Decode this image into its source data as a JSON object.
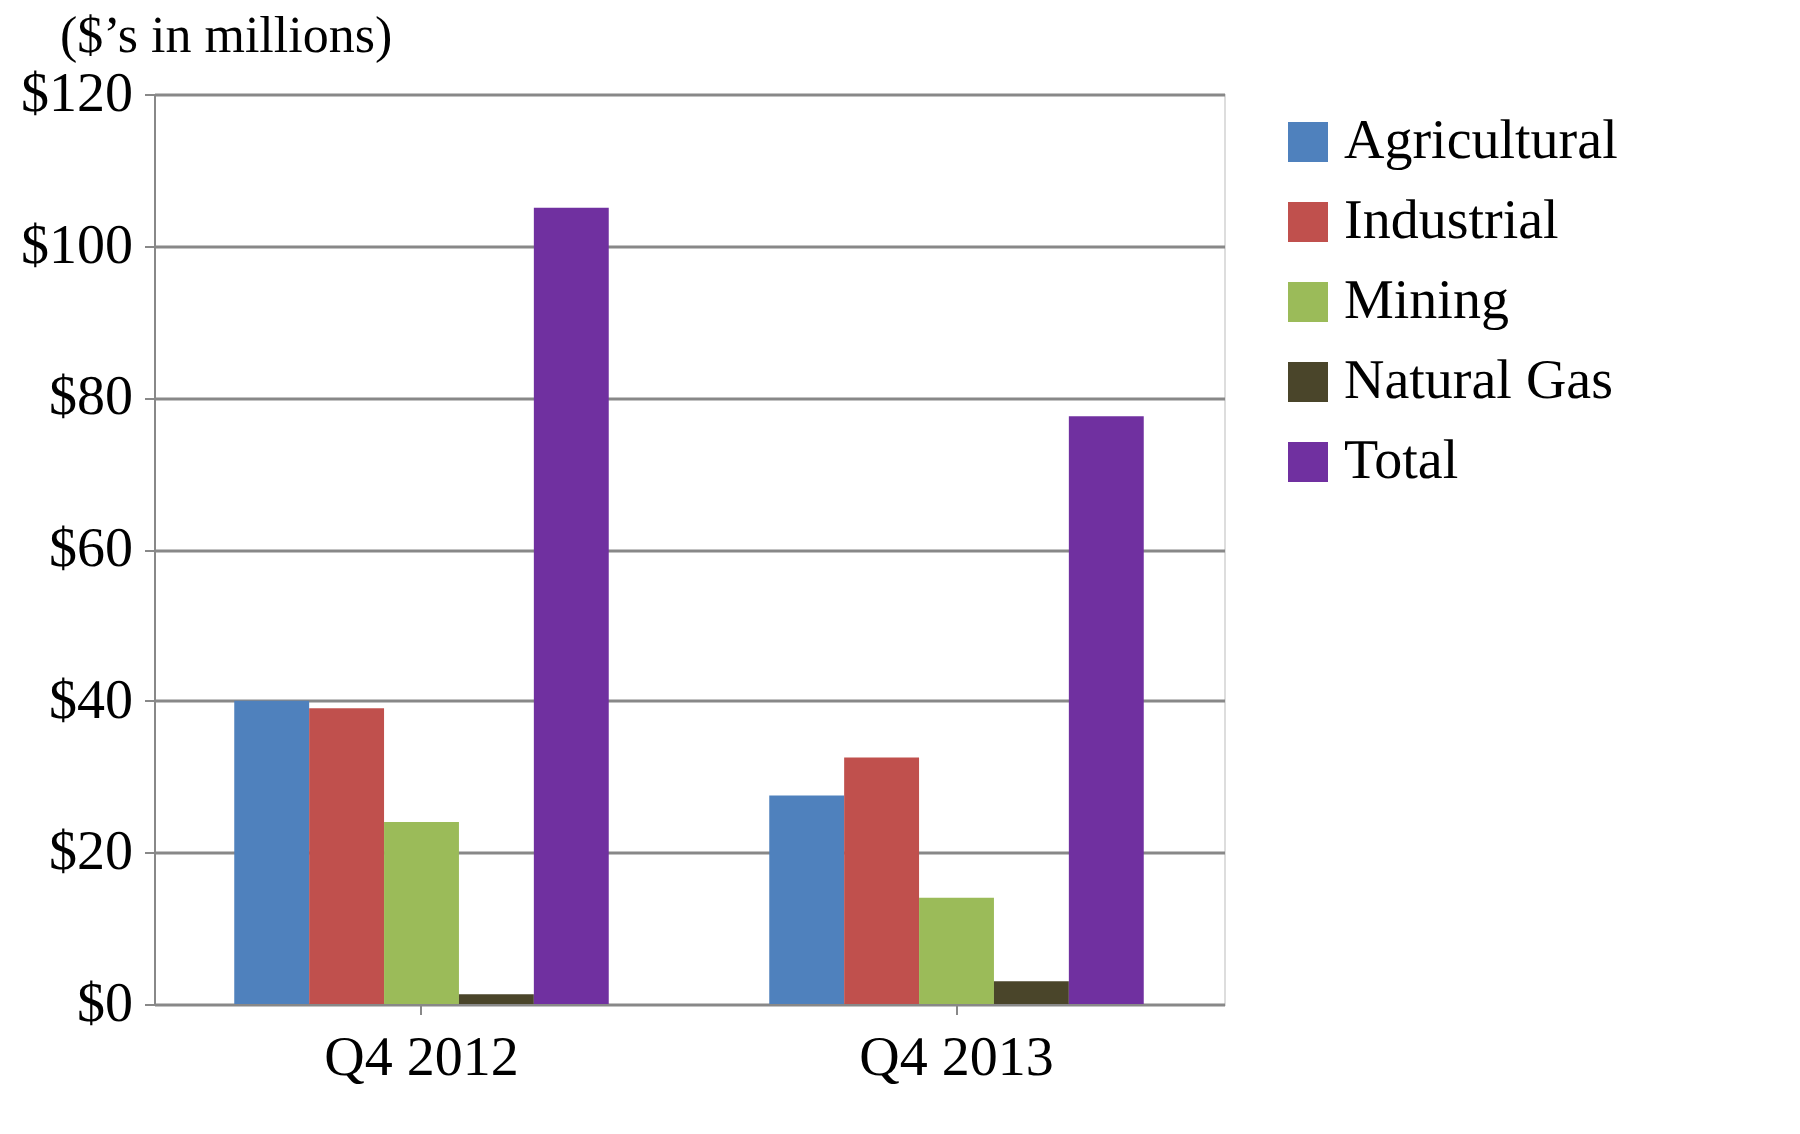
{
  "chart_data": {
    "type": "bar",
    "annotations": [
      "($’s in millions)"
    ],
    "categories": [
      "Q4 2012",
      "Q4 2013"
    ],
    "series": [
      {
        "name": "Agricultural",
        "color": "#4f81bd",
        "values": [
          40,
          27.5
        ]
      },
      {
        "name": "Industrial",
        "color": "#c0504d",
        "values": [
          39,
          32.5
        ]
      },
      {
        "name": "Mining",
        "color": "#9bbb59",
        "values": [
          24,
          14
        ]
      },
      {
        "name": "Natural Gas",
        "color": "#4a452a",
        "values": [
          1.3,
          3
        ]
      },
      {
        "name": "Total",
        "color": "#7030a0",
        "values": [
          105,
          77.5
        ]
      }
    ],
    "ylim": [
      0,
      120
    ],
    "yticks": [
      {
        "value": 0,
        "label": "$0"
      },
      {
        "value": 20,
        "label": "$20"
      },
      {
        "value": 40,
        "label": "$40"
      },
      {
        "value": 60,
        "label": "$60"
      },
      {
        "value": 80,
        "label": "$80"
      },
      {
        "value": 100,
        "label": "$100"
      },
      {
        "value": 120,
        "label": "$120"
      }
    ],
    "grid": "y",
    "legend": "right"
  }
}
